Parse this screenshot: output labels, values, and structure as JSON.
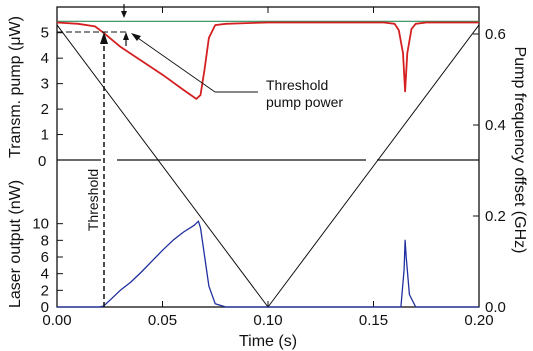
{
  "chart_data": {
    "type": "line",
    "xlabel": "Time (s)",
    "x_ticks": [
      "0.00",
      "0.05",
      "0.10",
      "0.15",
      "0.20"
    ],
    "xlim": [
      0.0,
      0.2
    ],
    "upper_panel": {
      "ylabel": "Transm. pump (μW)",
      "ylim": [
        0,
        5.5
      ],
      "y_ticks": [
        "0",
        "1",
        "2",
        "3",
        "4",
        "5"
      ],
      "series": [
        {
          "color": "#d42020",
          "x": [
            0.0,
            0.01,
            0.018,
            0.022,
            0.03,
            0.04,
            0.05,
            0.06,
            0.066,
            0.068,
            0.07,
            0.072,
            0.075,
            0.08,
            0.09,
            0.1,
            0.12,
            0.14,
            0.155,
            0.16,
            0.162,
            0.164,
            0.165,
            0.166,
            0.168,
            0.17,
            0.175,
            0.18,
            0.2
          ],
          "values": [
            5.4,
            5.35,
            5.25,
            5.0,
            4.45,
            3.9,
            3.35,
            2.75,
            2.4,
            2.55,
            3.6,
            4.8,
            5.3,
            5.35,
            5.38,
            5.4,
            5.4,
            5.4,
            5.4,
            5.35,
            5.1,
            4.2,
            2.7,
            4.2,
            5.15,
            5.35,
            5.4,
            5.4,
            5.4
          ]
        },
        {
          "color": "#2e8b57",
          "x": [
            0.0,
            0.05,
            0.1,
            0.15,
            0.2
          ],
          "values": [
            5.45,
            5.45,
            5.45,
            5.45,
            5.45
          ]
        }
      ]
    },
    "lower_panel": {
      "ylabel": "Laser output (nW)",
      "ylim": [
        0,
        12
      ],
      "y_ticks": [
        "0",
        "2",
        "4",
        "6",
        "8",
        "10"
      ],
      "series": [
        {
          "color": "#1f2f9f",
          "x": [
            0.0,
            0.02,
            0.022,
            0.025,
            0.03,
            0.035,
            0.04,
            0.045,
            0.05,
            0.055,
            0.06,
            0.065,
            0.067,
            0.068,
            0.07,
            0.072,
            0.075,
            0.08,
            0.1,
            0.15,
            0.163,
            0.1645,
            0.165,
            0.1655,
            0.167,
            0.17,
            0.2
          ],
          "values": [
            0,
            0,
            0.1,
            0.8,
            2.0,
            3.0,
            4.2,
            5.5,
            6.8,
            8.0,
            9.0,
            9.8,
            10.3,
            9.5,
            6.0,
            2.5,
            0.4,
            0.0,
            0.0,
            0.0,
            0.0,
            4.5,
            8.0,
            6.0,
            1.5,
            0.0,
            0.0
          ]
        }
      ]
    },
    "right_axis": {
      "ylabel": "Pump  frequency offset (GHz)",
      "ylim": [
        0,
        0.6
      ],
      "y_ticks": [
        "0.0",
        "0.2",
        "0.4",
        "0.6"
      ],
      "series": [
        {
          "color": "#111111",
          "x": [
            0.0,
            0.1,
            0.2
          ],
          "values": [
            0.62,
            0.0,
            0.62
          ]
        }
      ]
    },
    "annotations": {
      "threshold": "Threshold",
      "threshold_pump_power_line1": "Threshold",
      "threshold_pump_power_line2": "pump power"
    },
    "grid": false
  }
}
